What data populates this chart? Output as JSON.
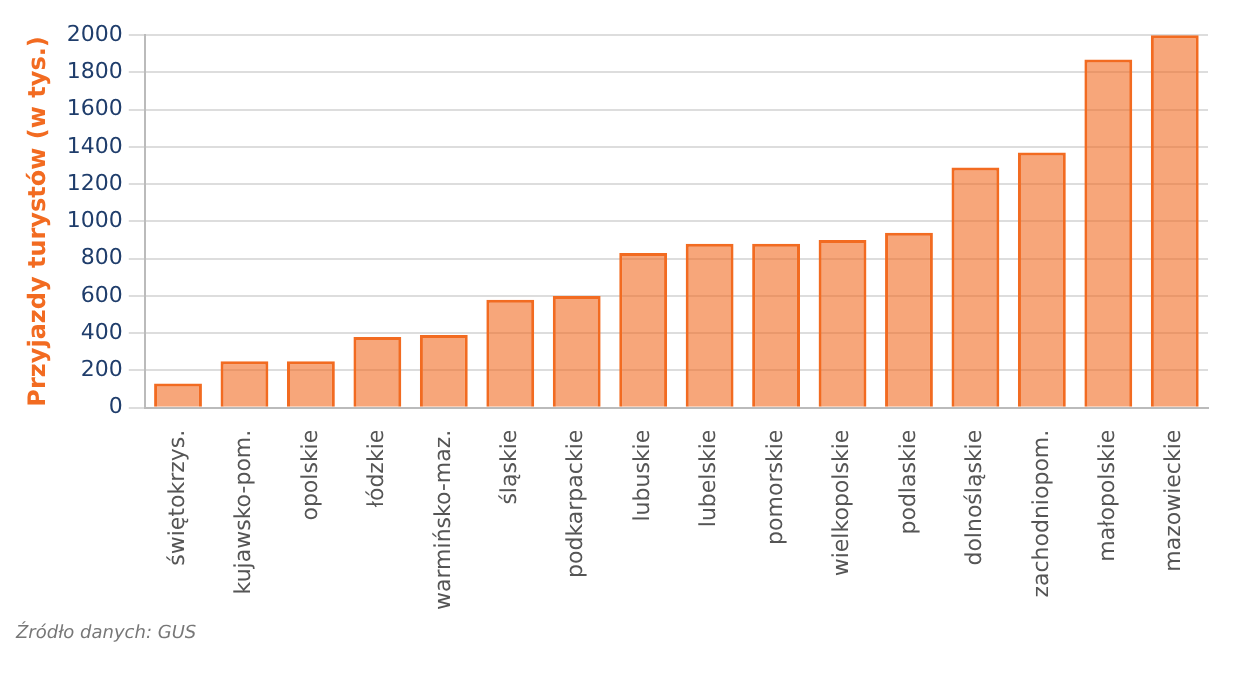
{
  "chart_data": {
    "type": "bar",
    "ylabel": "Przyjazdy turystów (w tys.)",
    "categories": [
      "świętokrzys.",
      "kujawsko-pom.",
      "opolskie",
      "łódzkie",
      "warmińsko-maz.",
      "śląskie",
      "podkarpackie",
      "lubuskie",
      "lubelskie",
      "pomorskie",
      "wielkopolskie",
      "podlaskie",
      "dolnośląskie",
      "zachodniopom.",
      "małopolskie",
      "mazowieckie"
    ],
    "values": [
      130,
      250,
      250,
      380,
      390,
      580,
      600,
      830,
      880,
      880,
      900,
      940,
      1290,
      1370,
      1870,
      2000
    ],
    "color": "#f26b21",
    "ylim": [
      0,
      2000
    ],
    "yticks": [
      0,
      200,
      400,
      600,
      800,
      1000,
      1200,
      1400,
      1600,
      1800,
      2000
    ],
    "grid": "y",
    "legend": false,
    "annotations": [
      "Źródło danych: GUS"
    ]
  }
}
